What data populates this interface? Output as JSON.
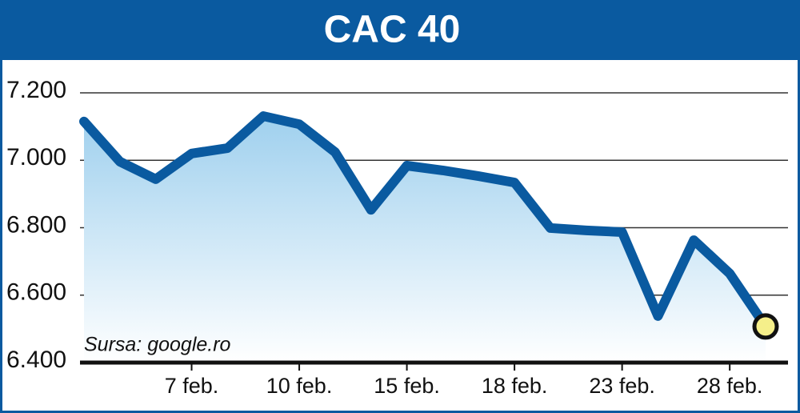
{
  "chart_data": {
    "type": "line",
    "title": "CAC 40",
    "source": "Sursa: google.ro",
    "categories": [
      null,
      null,
      null,
      "7 feb.",
      null,
      null,
      "10 feb.",
      null,
      null,
      "15 feb.",
      null,
      null,
      "18 feb.",
      null,
      null,
      "23 feb.",
      null,
      null,
      "28 feb.",
      null
    ],
    "series": [
      {
        "name": "CAC 40",
        "color": "#0a5aa0",
        "values": [
          7115,
          6996,
          6944,
          7020,
          7036,
          7131,
          7107,
          7024,
          6853,
          6984,
          6970,
          6953,
          6934,
          6799,
          6792,
          6787,
          6538,
          6763,
          6664,
          6507
        ]
      }
    ],
    "ylim": [
      6400,
      7200
    ],
    "yticks": [
      {
        "value": 6400,
        "label": "6.400"
      },
      {
        "value": 6600,
        "label": "6.600"
      },
      {
        "value": 6800,
        "label": "6.800"
      },
      {
        "value": 7000,
        "label": "7.000"
      },
      {
        "value": 7200,
        "label": "7.200"
      }
    ],
    "grid": true,
    "end_marker_color": "#f5ef8a"
  }
}
